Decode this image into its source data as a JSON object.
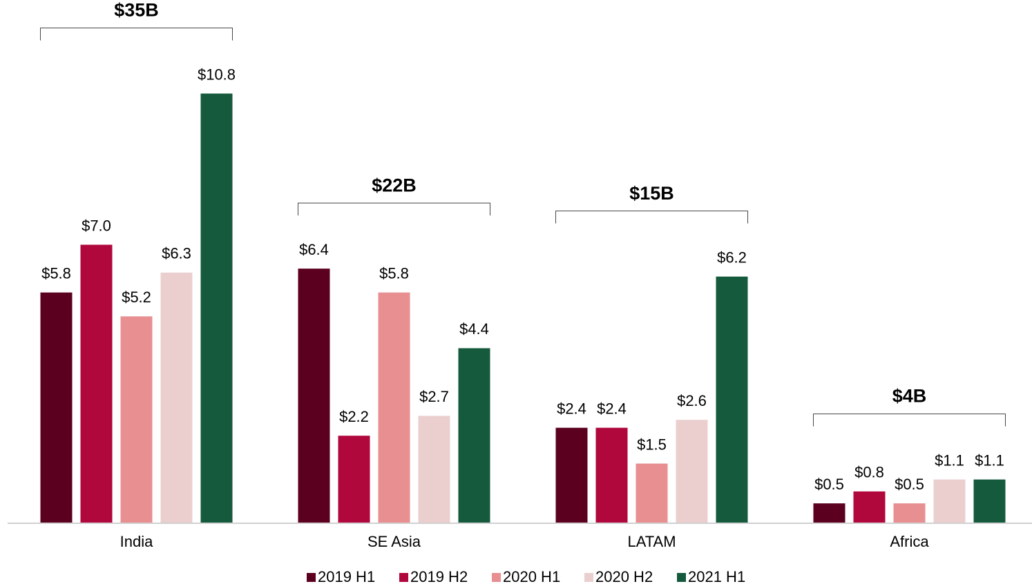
{
  "chart_data": {
    "type": "bar",
    "categories": [
      "India",
      "SE Asia",
      "LATAM",
      "Africa"
    ],
    "annotations": [
      "$35B",
      "$22B",
      "$15B",
      "$4B"
    ],
    "ylim": [
      0,
      11
    ],
    "grid": false,
    "legend": "bottom",
    "series": [
      {
        "name": "2019 H1",
        "color": "#5c0020",
        "values": [
          5.8,
          6.4,
          2.4,
          0.5
        ],
        "value_labels": [
          "$5.8",
          "$6.4",
          "$2.4",
          "$0.5"
        ]
      },
      {
        "name": "2019 H2",
        "color": "#b0073d",
        "values": [
          7.0,
          2.2,
          2.4,
          0.8
        ],
        "value_labels": [
          "$7.0",
          "$2.2",
          "$2.4",
          "$0.8"
        ]
      },
      {
        "name": "2020 H1",
        "color": "#e88f92",
        "values": [
          5.2,
          5.8,
          1.5,
          0.5
        ],
        "value_labels": [
          "$5.2",
          "$5.8",
          "$1.5",
          "$0.5"
        ]
      },
      {
        "name": "2020 H2",
        "color": "#ebcfcf",
        "values": [
          6.3,
          2.7,
          2.6,
          1.1
        ],
        "value_labels": [
          "$6.3",
          "$2.7",
          "$2.6",
          "$1.1"
        ]
      },
      {
        "name": "2021 H1",
        "color": "#165a3e",
        "values": [
          10.8,
          4.4,
          6.2,
          1.1
        ],
        "value_labels": [
          "$10.8",
          "$4.4",
          "$6.2",
          "$1.1"
        ]
      }
    ]
  }
}
